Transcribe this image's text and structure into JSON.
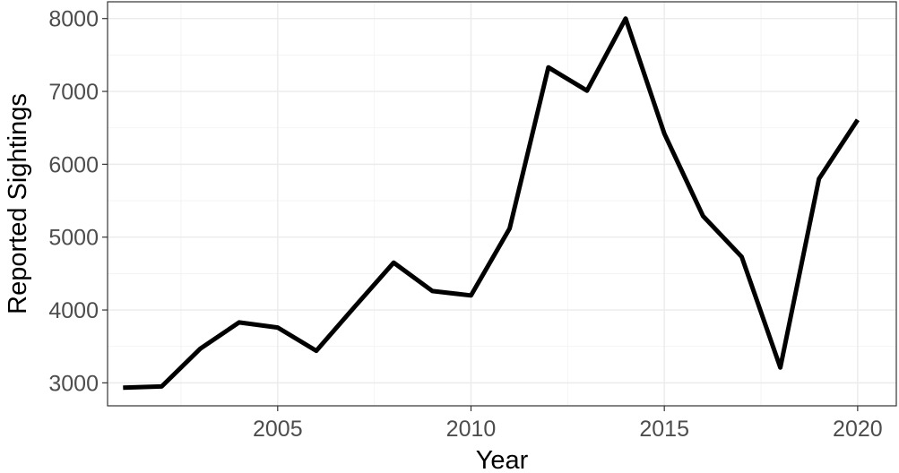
{
  "chart_data": {
    "type": "line",
    "xlabel": "Year",
    "ylabel": "Reported Sightings",
    "xlim": [
      2000.6,
      2021.0
    ],
    "ylim": [
      2685,
      8230
    ],
    "x_ticks": [
      2005,
      2010,
      2015,
      2020
    ],
    "y_ticks": [
      3000,
      4000,
      5000,
      6000,
      7000,
      8000
    ],
    "x_tick_labels": [
      "2005",
      "2010",
      "2015",
      "2020"
    ],
    "y_tick_labels": [
      "3000",
      "4000",
      "5000",
      "6000",
      "7000",
      "8000"
    ],
    "grid": true,
    "legend": "none",
    "colors": {
      "line": "#000000",
      "grid": "#ebebeb",
      "border": "#333333",
      "tick_text": "#4d4d4d"
    },
    "series": [
      {
        "x": [
          2001,
          2002,
          2003,
          2004,
          2005,
          2006,
          2007,
          2008,
          2009,
          2010,
          2011,
          2012,
          2013,
          2014,
          2015,
          2016,
          2017,
          2018,
          2019,
          2020
        ],
        "values": [
          2935,
          2950,
          3470,
          3830,
          3760,
          3440,
          4050,
          4650,
          4260,
          4200,
          5120,
          7330,
          7010,
          8000,
          6420,
          5290,
          4730,
          3210,
          5800,
          6610
        ]
      }
    ]
  }
}
